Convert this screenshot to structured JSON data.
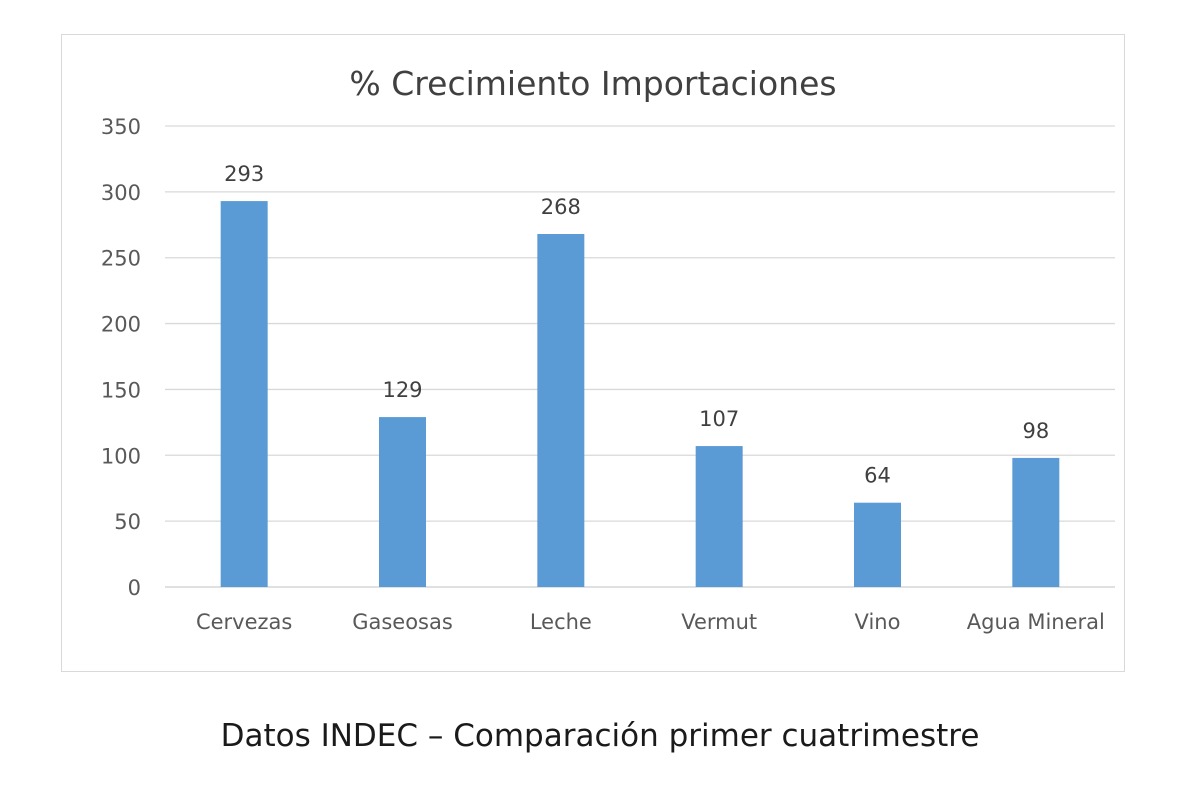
{
  "chart_data": {
    "type": "bar",
    "title": "% Crecimiento Importaciones",
    "categories": [
      "Cervezas",
      "Gaseosas",
      "Leche",
      "Vermut",
      "Vino",
      "Agua Mineral"
    ],
    "values": [
      293,
      129,
      268,
      107,
      64,
      98
    ],
    "data_labels": [
      "293",
      "129",
      "268",
      "107",
      "64",
      "98"
    ],
    "ylim": [
      0,
      350
    ],
    "yticks": [
      0,
      50,
      100,
      150,
      200,
      250,
      300,
      350
    ],
    "ytick_labels": [
      "0",
      "50",
      "100",
      "150",
      "200",
      "250",
      "300",
      "350"
    ],
    "xlabel": "",
    "ylabel": "",
    "grid": true,
    "legend": "none",
    "bar_color": "#5b9bd5",
    "grid_color": "#d9d9d9"
  },
  "caption": "Datos INDEC – Comparación primer cuatrimestre"
}
